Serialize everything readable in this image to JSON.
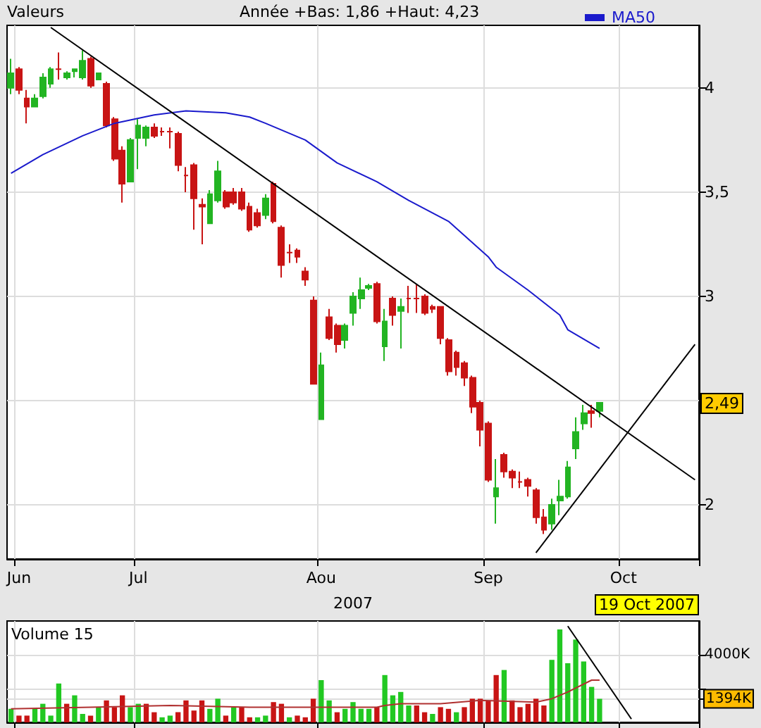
{
  "chart_data": [
    {
      "type": "candlestick",
      "ylabel": "Valeurs",
      "subtitle": "Année +Bas: 1,86 +Haut: 4,23",
      "xlabel": "2007",
      "categories": [
        null,
        "Jun",
        null,
        null,
        null,
        null,
        null,
        null,
        null,
        null,
        null,
        null,
        null,
        null,
        null,
        null,
        "Jul",
        null,
        null,
        null,
        null,
        null,
        null,
        null,
        null,
        null,
        null,
        null,
        null,
        null,
        null,
        null,
        null,
        null,
        null,
        null,
        null,
        null,
        null,
        "Aou",
        null,
        null,
        null,
        null,
        null,
        null,
        null,
        null,
        null,
        null,
        null,
        null,
        null,
        null,
        null,
        null,
        null,
        null,
        null,
        null,
        "Sep",
        null,
        null,
        null,
        null,
        null,
        null,
        null,
        null,
        null,
        null,
        null,
        null,
        null,
        null,
        null,
        null,
        "Oct",
        null,
        null,
        null,
        null,
        null,
        null,
        null,
        null,
        null
      ],
      "ohlc": [
        [
          4.0,
          4.14,
          3.97,
          4.07
        ],
        [
          4.09,
          4.1,
          3.97,
          3.99
        ],
        [
          3.95,
          3.99,
          3.83,
          3.91
        ],
        [
          3.91,
          3.97,
          3.91,
          3.95
        ],
        [
          3.96,
          4.07,
          3.95,
          4.05
        ],
        [
          4.02,
          4.1,
          4.0,
          4.09
        ],
        [
          4.09,
          4.17,
          4.04,
          4.09
        ],
        [
          4.05,
          4.08,
          4.04,
          4.07
        ],
        [
          4.08,
          4.09,
          4.05,
          4.09
        ],
        [
          4.05,
          4.18,
          4.04,
          4.13
        ],
        [
          4.14,
          4.15,
          4.0,
          4.01
        ],
        [
          4.04,
          4.07,
          4.04,
          4.07
        ],
        [
          4.02,
          4.03,
          3.81,
          3.82
        ],
        [
          3.85,
          3.86,
          3.65,
          3.66
        ],
        [
          3.7,
          3.72,
          3.45,
          3.54
        ],
        [
          3.55,
          3.76,
          3.55,
          3.75
        ],
        [
          3.76,
          3.85,
          3.61,
          3.82
        ],
        [
          3.76,
          3.82,
          3.72,
          3.81
        ],
        [
          3.81,
          3.83,
          3.76,
          3.77
        ],
        [
          3.79,
          3.81,
          3.77,
          3.79
        ],
        [
          3.79,
          3.81,
          3.71,
          3.79
        ],
        [
          3.78,
          3.79,
          3.6,
          3.63
        ],
        [
          3.58,
          3.62,
          3.5,
          3.58
        ],
        [
          3.63,
          3.64,
          3.32,
          3.47
        ],
        [
          3.44,
          3.47,
          3.25,
          3.43
        ],
        [
          3.35,
          3.51,
          3.35,
          3.49
        ],
        [
          3.46,
          3.65,
          3.45,
          3.6
        ],
        [
          3.5,
          3.51,
          3.42,
          3.43
        ],
        [
          3.5,
          3.52,
          3.44,
          3.45
        ],
        [
          3.5,
          3.52,
          3.41,
          3.42
        ],
        [
          3.43,
          3.45,
          3.31,
          3.32
        ],
        [
          3.4,
          3.42,
          3.33,
          3.34
        ],
        [
          3.39,
          3.49,
          3.37,
          3.47
        ],
        [
          3.54,
          3.55,
          3.35,
          3.36
        ],
        [
          3.33,
          3.34,
          3.09,
          3.15
        ],
        [
          3.21,
          3.25,
          3.16,
          3.21
        ],
        [
          3.22,
          3.23,
          3.16,
          3.19
        ],
        [
          3.12,
          3.14,
          3.05,
          3.08
        ],
        [
          2.98,
          3.0,
          2.58,
          2.58
        ],
        [
          2.41,
          2.73,
          2.41,
          2.67
        ],
        [
          2.9,
          2.94,
          2.79,
          2.8
        ],
        [
          2.86,
          2.87,
          2.73,
          2.77
        ],
        [
          2.79,
          2.87,
          2.75,
          2.86
        ],
        [
          2.92,
          3.02,
          2.86,
          3.0
        ],
        [
          2.99,
          3.09,
          2.94,
          3.03
        ],
        [
          3.04,
          3.06,
          3.03,
          3.05
        ],
        [
          3.06,
          3.07,
          2.87,
          2.88
        ],
        [
          2.76,
          2.94,
          2.69,
          2.88
        ],
        [
          2.99,
          3.0,
          2.86,
          2.91
        ],
        [
          2.93,
          2.99,
          2.75,
          2.95
        ],
        [
          2.99,
          3.05,
          2.92,
          2.99
        ],
        [
          2.99,
          3.06,
          2.92,
          2.99
        ],
        [
          3.0,
          3.01,
          2.91,
          2.92
        ],
        [
          2.95,
          2.96,
          2.92,
          2.94
        ],
        [
          2.95,
          2.95,
          2.77,
          2.8
        ],
        [
          2.79,
          2.8,
          2.62,
          2.64
        ],
        [
          2.73,
          2.74,
          2.62,
          2.66
        ],
        [
          2.68,
          2.69,
          2.57,
          2.61
        ],
        [
          2.61,
          2.62,
          2.44,
          2.47
        ],
        [
          2.49,
          2.5,
          2.28,
          2.36
        ],
        [
          2.39,
          2.4,
          2.11,
          2.12
        ],
        [
          2.04,
          2.22,
          1.91,
          2.08
        ],
        [
          2.24,
          2.25,
          2.13,
          2.16
        ],
        [
          2.16,
          2.17,
          2.08,
          2.13
        ],
        [
          2.11,
          2.16,
          2.08,
          2.11
        ],
        [
          2.12,
          2.13,
          2.04,
          2.09
        ],
        [
          2.07,
          2.08,
          1.91,
          1.94
        ],
        [
          1.94,
          1.98,
          1.86,
          1.88
        ],
        [
          1.91,
          2.03,
          1.88,
          2.0
        ],
        [
          2.02,
          2.12,
          1.95,
          2.04
        ],
        [
          2.04,
          2.21,
          2.03,
          2.18
        ],
        [
          2.27,
          2.42,
          2.22,
          2.35
        ],
        [
          2.39,
          2.48,
          2.36,
          2.44
        ],
        [
          2.45,
          2.48,
          2.37,
          2.44
        ],
        [
          2.45,
          2.49,
          2.42,
          2.49
        ],
        null,
        null,
        null,
        null,
        null,
        null,
        null,
        null,
        null,
        null,
        null,
        null
      ],
      "colors": [
        "#22b422",
        "#c81414",
        "#c81414",
        "#22b422",
        "#22b422",
        "#22b422",
        "#c81414",
        "#22b422",
        "#22b422",
        "#22b422",
        "#c81414",
        "#22b422",
        "#c81414",
        "#c81414",
        "#c81414",
        "#22b422",
        "#22b422",
        "#22b422",
        "#c81414",
        "#c81414",
        "#c81414",
        "#c81414",
        "#c81414",
        "#c81414",
        "#c81414",
        "#22b422",
        "#22b422",
        "#c81414",
        "#c81414",
        "#c81414",
        "#c81414",
        "#c81414",
        "#22b422",
        "#c81414",
        "#c81414",
        "#c81414",
        "#c81414",
        "#c81414",
        "#c81414",
        "#22b422",
        "#c81414",
        "#c81414",
        "#22b422",
        "#22b422",
        "#22b422",
        "#22b422",
        "#c81414",
        "#22b422",
        "#c81414",
        "#22b422",
        "#c81414",
        "#c81414",
        "#c81414",
        "#c81414",
        "#c81414",
        "#c81414",
        "#c81414",
        "#c81414",
        "#c81414",
        "#c81414",
        "#c81414",
        "#22b422",
        "#c81414",
        "#c81414",
        "#c81414",
        "#c81414",
        "#c81414",
        "#c81414",
        "#22b422",
        "#22b422",
        "#22b422",
        "#22b422",
        "#22b422",
        "#c81414",
        "#22b422",
        null,
        null,
        null,
        null,
        null,
        null,
        null,
        null,
        null,
        null,
        null,
        null
      ],
      "series": [
        {
          "type": "line",
          "name": "MA50",
          "color": "#1a1acc",
          "values": [
            3.59,
            null,
            null,
            null,
            3.68,
            null,
            null,
            null,
            null,
            3.77,
            null,
            null,
            null,
            3.83,
            null,
            null,
            null,
            null,
            3.87,
            null,
            null,
            null,
            3.89,
            null,
            null,
            null,
            null,
            3.88,
            null,
            null,
            3.86,
            null,
            3.83,
            null,
            null,
            null,
            null,
            3.75,
            null,
            null,
            null,
            3.64,
            null,
            null,
            null,
            null,
            3.55,
            null,
            null,
            null,
            3.46,
            null,
            null,
            null,
            null,
            3.36,
            null,
            null,
            null,
            null,
            3.19,
            3.14,
            null,
            null,
            null,
            3.03,
            null,
            null,
            null,
            2.91,
            2.84,
            null,
            null,
            null,
            2.75,
            null,
            null,
            null,
            null,
            null,
            null,
            null,
            null,
            null,
            null,
            null,
            null
          ]
        },
        {
          "type": "line",
          "color": "#000000",
          "values": [
            null,
            null,
            null,
            null,
            null,
            4.29,
            null,
            null,
            null,
            null,
            null,
            null,
            null,
            null,
            null,
            null,
            null,
            null,
            null,
            null,
            null,
            null,
            null,
            null,
            null,
            null,
            null,
            null,
            null,
            null,
            null,
            null,
            null,
            null,
            null,
            null,
            null,
            null,
            null,
            null,
            null,
            null,
            null,
            null,
            null,
            null,
            null,
            null,
            null,
            null,
            null,
            null,
            null,
            null,
            null,
            null,
            null,
            null,
            null,
            null,
            null,
            null,
            null,
            null,
            null,
            null,
            null,
            null,
            null,
            null,
            null,
            null,
            null,
            null,
            null,
            null,
            null,
            null,
            null,
            null,
            null,
            null,
            null,
            null,
            null,
            null,
            2.12
          ]
        },
        {
          "type": "line",
          "color": "#000000",
          "values": [
            null,
            null,
            null,
            null,
            null,
            null,
            null,
            null,
            null,
            null,
            null,
            null,
            null,
            null,
            null,
            null,
            null,
            null,
            null,
            null,
            null,
            null,
            null,
            null,
            null,
            null,
            null,
            null,
            null,
            null,
            null,
            null,
            null,
            null,
            null,
            null,
            null,
            null,
            null,
            null,
            null,
            null,
            null,
            null,
            null,
            null,
            null,
            null,
            null,
            null,
            null,
            null,
            null,
            null,
            null,
            null,
            null,
            null,
            null,
            null,
            null,
            null,
            null,
            null,
            null,
            null,
            1.77,
            null,
            null,
            null,
            null,
            null,
            null,
            null,
            null,
            null,
            null,
            null,
            null,
            null,
            null,
            null,
            null,
            null,
            null,
            null,
            2.77
          ]
        }
      ],
      "ylim": [
        1.74,
        4.3
      ],
      "yticks": [
        2,
        {
          "value": 2.5,
          "label": null
        },
        3,
        {
          "value": 3.5,
          "label": "3,5"
        },
        4
      ],
      "annotations": [
        "19 Oct 2007",
        {
          "text": "2,49",
          "y": 2.49
        }
      ],
      "grid": true,
      "legend": "top"
    },
    {
      "type": "bar",
      "title": "Volume 15",
      "categories": [
        null,
        null,
        null,
        null,
        null,
        null,
        null,
        null,
        null,
        null,
        null,
        null,
        null,
        null,
        null,
        null,
        null,
        null,
        null,
        null,
        null,
        null,
        null,
        null,
        null,
        null,
        null,
        null,
        null,
        null,
        null,
        null,
        null,
        null,
        null,
        null,
        null,
        null,
        null,
        null,
        null,
        null,
        null,
        null,
        null,
        null,
        null,
        null,
        null,
        null,
        null,
        null,
        null,
        null,
        null,
        null,
        null,
        null,
        null,
        null,
        null,
        null,
        null,
        null,
        null,
        null,
        null,
        null,
        null,
        null,
        null,
        null,
        null,
        null,
        null,
        null,
        null,
        null,
        null,
        null,
        null,
        null,
        null,
        null,
        null,
        null,
        null
      ],
      "values": [
        800,
        400,
        400,
        800,
        1100,
        400,
        2300,
        1100,
        1600,
        500,
        400,
        900,
        1300,
        900,
        1600,
        900,
        1100,
        1100,
        600,
        300,
        400,
        600,
        1300,
        700,
        1300,
        800,
        1400,
        400,
        900,
        900,
        300,
        300,
        400,
        1200,
        1100,
        300,
        400,
        300,
        1400,
        2500,
        1300,
        600,
        800,
        1200,
        800,
        800,
        900,
        2800,
        1600,
        1800,
        1000,
        1000,
        600,
        500,
        900,
        800,
        600,
        900,
        1400,
        1400,
        1300,
        2800,
        3100,
        1300,
        900,
        1100,
        1400,
        1000,
        3700,
        5500,
        3500,
        4900,
        3600,
        2100,
        1394,
        null,
        null,
        null,
        null,
        null,
        null,
        null,
        null,
        null,
        null,
        null,
        null
      ],
      "colors": [
        "#22c822",
        "#c81414",
        "#c81414",
        "#22c822",
        "#22c822",
        "#22c822",
        "#22c822",
        "#c81414",
        "#22c822",
        "#22c822",
        "#c81414",
        "#22c822",
        "#c81414",
        "#c81414",
        "#c81414",
        "#22c822",
        "#22c822",
        "#c81414",
        "#c81414",
        "#22c822",
        "#22c822",
        "#c81414",
        "#c81414",
        "#c81414",
        "#c81414",
        "#22c822",
        "#22c822",
        "#c81414",
        "#22c822",
        "#c81414",
        "#c81414",
        "#22c822",
        "#22c822",
        "#c81414",
        "#c81414",
        "#22c822",
        "#c81414",
        "#c81414",
        "#c81414",
        "#22c822",
        "#22c822",
        "#c81414",
        "#22c822",
        "#22c822",
        "#22c822",
        "#22c822",
        "#c81414",
        "#22c822",
        "#22c822",
        "#22c822",
        "#22c822",
        "#c81414",
        "#c81414",
        "#22c822",
        "#c81414",
        "#c81414",
        "#22c822",
        "#c81414",
        "#c81414",
        "#c81414",
        "#c81414",
        "#c81414",
        "#22c822",
        "#c81414",
        "#c81414",
        "#c81414",
        "#c81414",
        "#c81414",
        "#22c822",
        "#22c822",
        "#22c822",
        "#22c822",
        "#22c822",
        "#22c822",
        "#22c822",
        null,
        null,
        null,
        null,
        null,
        null,
        null,
        null,
        null,
        null,
        null,
        null
      ],
      "series": [
        {
          "type": "line",
          "color": "#b03030",
          "values": [
            800,
            null,
            null,
            null,
            null,
            null,
            null,
            null,
            null,
            null,
            900,
            null,
            null,
            null,
            null,
            null,
            null,
            null,
            null,
            null,
            1000,
            null,
            null,
            null,
            null,
            null,
            null,
            null,
            null,
            null,
            900,
            null,
            null,
            null,
            null,
            null,
            null,
            null,
            null,
            null,
            900,
            null,
            null,
            null,
            null,
            null,
            900,
            1000,
            null,
            1100,
            null,
            null,
            null,
            null,
            1100,
            null,
            null,
            null,
            null,
            1300,
            null,
            null,
            null,
            null,
            null,
            null,
            1200,
            null,
            1400,
            null,
            1800,
            null,
            null,
            2500,
            2500,
            null,
            null,
            null,
            null,
            null,
            null,
            null,
            null,
            null,
            null,
            null,
            null
          ]
        },
        {
          "type": "line",
          "color": "#000000",
          "values": [
            null,
            null,
            null,
            null,
            null,
            null,
            null,
            null,
            null,
            null,
            null,
            null,
            null,
            null,
            null,
            null,
            null,
            null,
            null,
            null,
            null,
            null,
            null,
            null,
            null,
            null,
            null,
            null,
            null,
            null,
            null,
            null,
            null,
            null,
            null,
            null,
            null,
            null,
            null,
            null,
            null,
            null,
            null,
            null,
            null,
            null,
            null,
            null,
            null,
            null,
            null,
            null,
            null,
            null,
            null,
            null,
            null,
            null,
            null,
            null,
            null,
            null,
            null,
            null,
            null,
            null,
            null,
            null,
            null,
            null,
            5700,
            null,
            null,
            null,
            null,
            null,
            null,
            null,
            200,
            null,
            null,
            null,
            null,
            null,
            null,
            null,
            null
          ]
        }
      ],
      "ylim": [
        0,
        6000
      ],
      "yticks": [
        {
          "value": 1394,
          "label": "1394K"
        },
        {
          "value": 2000,
          "label": null
        },
        {
          "value": 4000,
          "label": "4000K"
        }
      ],
      "grid": true,
      "tick_labels": "y"
    }
  ]
}
